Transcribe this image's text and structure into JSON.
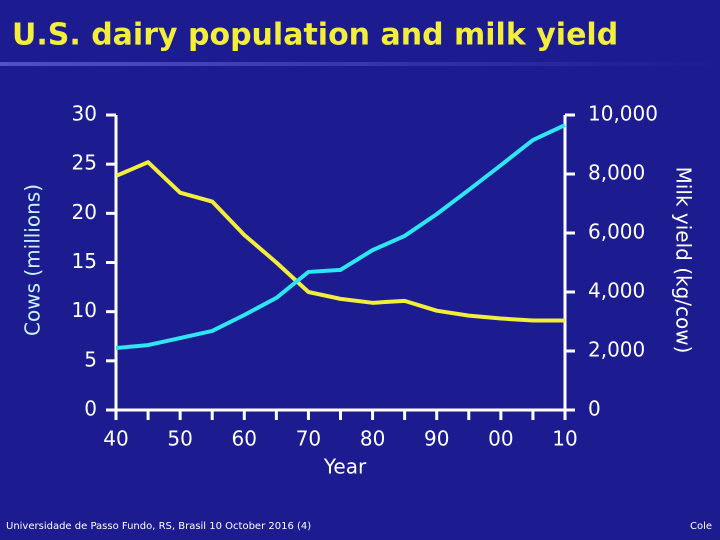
{
  "chart_data": {
    "type": "line",
    "title": "U.S. dairy population and milk yield",
    "xlabel": "Year",
    "ylabel": "Cows (millions)",
    "y2label": "Milk yield (kg/cow)",
    "x": [
      1940,
      1945,
      1950,
      1955,
      1960,
      1965,
      1970,
      1975,
      1980,
      1985,
      1990,
      1995,
      2000,
      2005,
      2010
    ],
    "series": [
      {
        "name": "Cows",
        "color": "#f2ee3a",
        "values": [
          23.8,
          25.2,
          22.1,
          21.2,
          17.8,
          15.0,
          12.0,
          11.3,
          10.9,
          11.1,
          10.1,
          9.6,
          9.3,
          9.1,
          9.1
        ]
      },
      {
        "name": "Milk yield",
        "color": "#2ee6f2",
        "axis": "y2",
        "values": [
          2100,
          2200,
          2440,
          2680,
          3220,
          3800,
          4680,
          4750,
          5420,
          5900,
          6640,
          7460,
          8300,
          9150,
          9660
        ]
      }
    ],
    "xlim": [
      1940,
      2010
    ],
    "xticks": [
      {
        "value": 1940,
        "label": "40"
      },
      {
        "value": 1950,
        "label": "50"
      },
      {
        "value": 1960,
        "label": "60"
      },
      {
        "value": 1970,
        "label": "70"
      },
      {
        "value": 1980,
        "label": "80"
      },
      {
        "value": 1990,
        "label": "90"
      },
      {
        "value": 2000,
        "label": "00"
      },
      {
        "value": 2010,
        "label": "10"
      }
    ],
    "xminor_ticks": [
      1945,
      1955,
      1965,
      1975,
      1985,
      1995,
      2005
    ],
    "ylim": [
      0,
      30
    ],
    "yticks": [
      0,
      5,
      10,
      15,
      20,
      25,
      30
    ],
    "y2lim": [
      0,
      10000
    ],
    "y2ticks": [
      0,
      {
        "value": 2000,
        "label": "2,000"
      },
      {
        "value": 4000,
        "label": "4,000"
      },
      {
        "value": 6000,
        "label": "6,000"
      },
      {
        "value": 8000,
        "label": "8,000"
      },
      {
        "value": 10000,
        "label": "10,000"
      }
    ]
  },
  "footer": {
    "left": "Universidade de Passo Fundo, RS, Brasil 10 October 2016 (4)",
    "right": "Cole"
  }
}
